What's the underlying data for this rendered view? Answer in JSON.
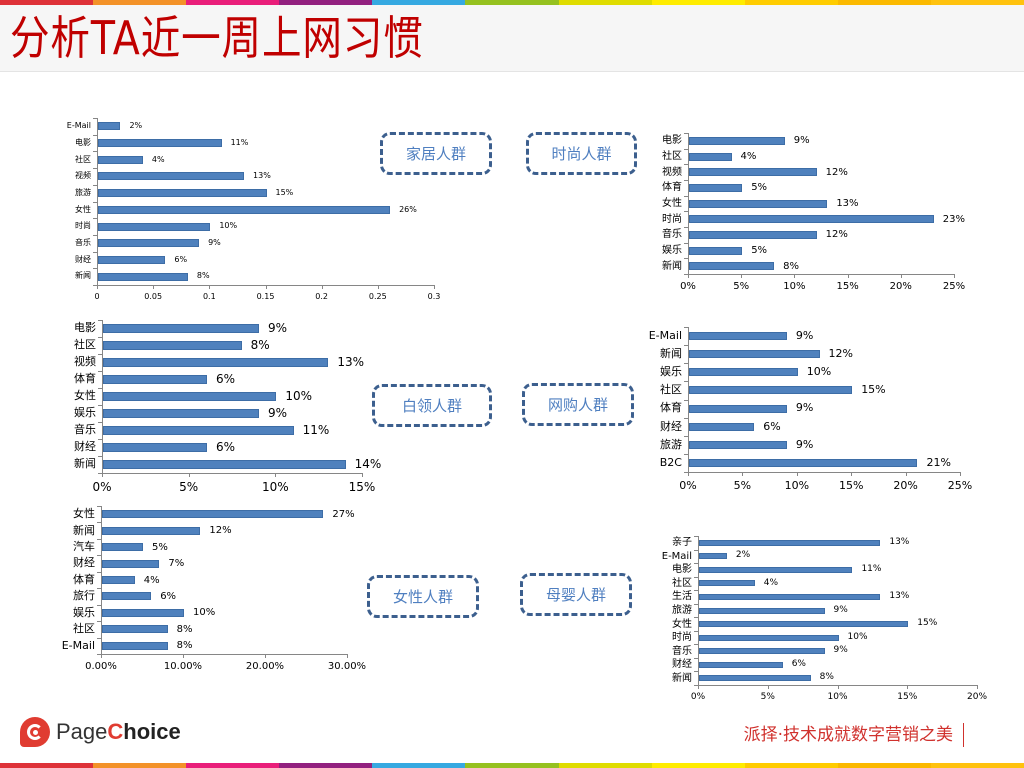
{
  "header": {
    "title": "分析TA近一周上网习惯"
  },
  "stripe_colors": [
    "#de3238",
    "#f39229",
    "#e91e7a",
    "#92207f",
    "#36a9e1",
    "#95c11f",
    "#dfdc00",
    "#ffec00",
    "#ffcc00",
    "#fbb900",
    "#ffc20e"
  ],
  "segments": [
    {
      "label": "家居人群"
    },
    {
      "label": "时尚人群"
    },
    {
      "label": "白领人群"
    },
    {
      "label": "网购人群"
    },
    {
      "label": "女性人群"
    },
    {
      "label": "母婴人群"
    }
  ],
  "footer": {
    "logo_text_regular": "Page",
    "logo_text_bold_c": "C",
    "logo_text_bold": "hoice",
    "slogan": "派择·技术成就数字营销之美"
  },
  "chart_data": [
    {
      "id": "home",
      "segment": "家居人群",
      "type": "bar",
      "orientation": "horizontal",
      "categories": [
        "E-Mail",
        "电影",
        "社区",
        "视频",
        "旅游",
        "女性",
        "时尚",
        "音乐",
        "财经",
        "新闻"
      ],
      "values": [
        0.02,
        0.11,
        0.04,
        0.13,
        0.15,
        0.26,
        0.1,
        0.09,
        0.06,
        0.08
      ],
      "value_labels": [
        "2%",
        "11%",
        "4%",
        "13%",
        "15%",
        "26%",
        "10%",
        "9%",
        "6%",
        "8%"
      ],
      "xlim": [
        0,
        0.3
      ],
      "xticks": [
        "0",
        "0.05",
        "0.1",
        "0.15",
        "0.2",
        "0.25",
        "0.3"
      ],
      "title": "",
      "xlabel": "",
      "ylabel": "",
      "grid": false,
      "legend": "none"
    },
    {
      "id": "fashion",
      "segment": "时尚人群",
      "type": "bar",
      "orientation": "horizontal",
      "categories": [
        "电影",
        "社区",
        "视频",
        "体育",
        "女性",
        "时尚",
        "音乐",
        "娱乐",
        "新闻"
      ],
      "values": [
        9,
        4,
        12,
        5,
        13,
        23,
        12,
        5,
        8
      ],
      "value_labels": [
        "9%",
        "4%",
        "12%",
        "5%",
        "13%",
        "23%",
        "12%",
        "5%",
        "8%"
      ],
      "xlim": [
        0,
        25
      ],
      "xticks": [
        "0%",
        "5%",
        "10%",
        "15%",
        "20%",
        "25%"
      ],
      "title": "",
      "xlabel": "",
      "ylabel": "",
      "grid": false,
      "legend": "none"
    },
    {
      "id": "whitecollar",
      "segment": "白领人群",
      "type": "bar",
      "orientation": "horizontal",
      "categories": [
        "电影",
        "社区",
        "视频",
        "体育",
        "女性",
        "娱乐",
        "音乐",
        "财经",
        "新闻"
      ],
      "values": [
        9,
        8,
        13,
        6,
        10,
        9,
        11,
        6,
        14
      ],
      "value_labels": [
        "9%",
        "8%",
        "13%",
        "6%",
        "10%",
        "9%",
        "11%",
        "6%",
        "14%"
      ],
      "xlim": [
        0,
        15
      ],
      "xticks": [
        "0%",
        "5%",
        "10%",
        "15%"
      ],
      "title": "",
      "xlabel": "",
      "ylabel": "",
      "grid": false,
      "legend": "none"
    },
    {
      "id": "shopping",
      "segment": "网购人群",
      "type": "bar",
      "orientation": "horizontal",
      "categories": [
        "E-Mail",
        "新闻",
        "娱乐",
        "社区",
        "体育",
        "财经",
        "旅游",
        "B2C"
      ],
      "values": [
        9,
        12,
        10,
        15,
        9,
        6,
        9,
        21
      ],
      "value_labels": [
        "9%",
        "12%",
        "10%",
        "15%",
        "9%",
        "6%",
        "9%",
        "21%"
      ],
      "xlim": [
        0,
        25
      ],
      "xticks": [
        "0%",
        "5%",
        "10%",
        "15%",
        "20%",
        "25%"
      ],
      "title": "",
      "xlabel": "",
      "ylabel": "",
      "grid": false,
      "legend": "none"
    },
    {
      "id": "female",
      "segment": "女性人群",
      "type": "bar",
      "orientation": "horizontal",
      "categories": [
        "女性",
        "新闻",
        "汽车",
        "财经",
        "体育",
        "旅行",
        "娱乐",
        "社区",
        "E-Mail"
      ],
      "values": [
        27,
        12,
        5,
        7,
        4,
        6,
        10,
        8,
        8
      ],
      "value_labels": [
        "27%",
        "12%",
        "5%",
        "7%",
        "4%",
        "6%",
        "10%",
        "8%",
        "8%"
      ],
      "xlim": [
        0,
        30
      ],
      "xticks": [
        "0.00%",
        "10.00%",
        "20.00%",
        "30.00%"
      ],
      "title": "",
      "xlabel": "",
      "ylabel": "",
      "grid": false,
      "legend": "none"
    },
    {
      "id": "mombaby",
      "segment": "母婴人群",
      "type": "bar",
      "orientation": "horizontal",
      "categories": [
        "亲子",
        "E-Mail",
        "电影",
        "社区",
        "生活",
        "旅游",
        "女性",
        "时尚",
        "音乐",
        "财经",
        "新闻"
      ],
      "values": [
        13,
        2,
        11,
        4,
        13,
        9,
        15,
        10,
        9,
        6,
        8
      ],
      "value_labels": [
        "13%",
        "2%",
        "11%",
        "4%",
        "13%",
        "9%",
        "15%",
        "10%",
        "9%",
        "6%",
        "8%"
      ],
      "xlim": [
        0,
        20
      ],
      "xticks": [
        "0%",
        "5%",
        "10%",
        "15%",
        "20%"
      ],
      "title": "",
      "xlabel": "",
      "ylabel": "",
      "grid": false,
      "legend": "none"
    }
  ]
}
